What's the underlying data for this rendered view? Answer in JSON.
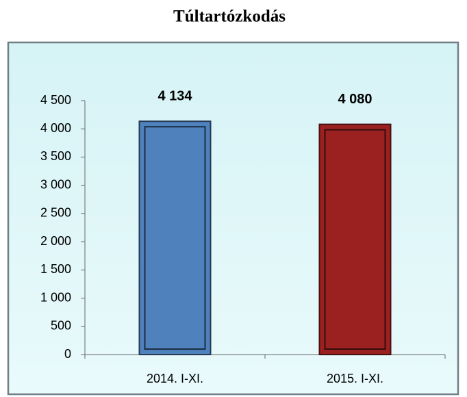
{
  "chart_data": {
    "type": "bar",
    "title": "Túltartózkodás",
    "categories": [
      "2014. I-XI.",
      "2015. I-XI."
    ],
    "values": [
      4134,
      4080
    ],
    "value_labels": [
      "4 134",
      "4 080"
    ],
    "colors": [
      "#4f81bd",
      "#9b2121"
    ],
    "ylim": [
      0,
      4500
    ],
    "yticks": [
      0,
      500,
      {
        "value": 1000,
        "label": "1 000"
      },
      {
        "value": 1500,
        "label": "1 500"
      },
      {
        "value": 2000,
        "label": "2 000"
      },
      {
        "value": 2500,
        "label": "2 500"
      },
      {
        "value": 3000,
        "label": "3 000"
      },
      {
        "value": 3500,
        "label": "3 500"
      },
      {
        "value": 4000,
        "label": "4 000"
      },
      {
        "value": 4500,
        "label": "4 500"
      }
    ],
    "grid": false
  }
}
